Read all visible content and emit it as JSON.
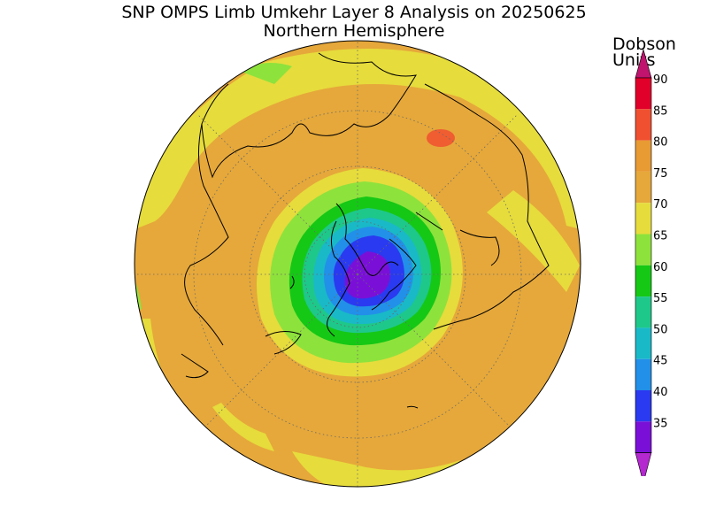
{
  "header": {
    "title": "SNP OMPS Limb Umkehr Layer 8 Analysis on 20250625",
    "subtitle": "Northern Hemisphere"
  },
  "colorbar": {
    "units_line1": "Dobson",
    "units_line2": "Units",
    "levels": [
      {
        "label": "90",
        "color": "#e0002a"
      },
      {
        "label": "85",
        "color": "#f05030"
      },
      {
        "label": "80",
        "color": "#e89a33"
      },
      {
        "label": "75",
        "color": "#e6a83a"
      },
      {
        "label": "70",
        "color": "#e6dc3c"
      },
      {
        "label": "65",
        "color": "#8ee23c"
      },
      {
        "label": "60",
        "color": "#15c815"
      },
      {
        "label": "55",
        "color": "#1ec88a"
      },
      {
        "label": "50",
        "color": "#19b9c8"
      },
      {
        "label": "45",
        "color": "#2290e8"
      },
      {
        "label": "40",
        "color": "#2a3af0"
      },
      {
        "label": "35",
        "color": "#7a10d8"
      }
    ],
    "top_arrow_color": "#c0146e",
    "bottom_arrow_color": "#b428d0"
  },
  "map": {
    "projection": "north-polar-stereographic",
    "background_color": "#e6a83a"
  }
}
